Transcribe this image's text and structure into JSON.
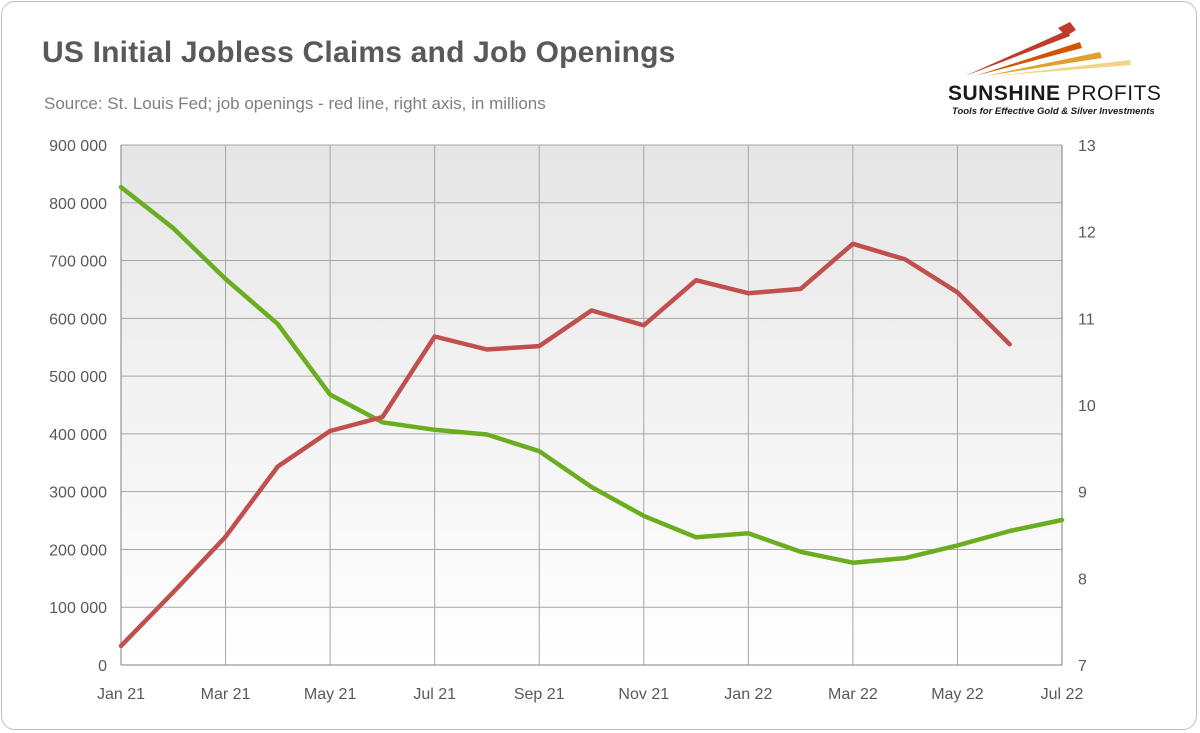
{
  "header": {
    "title": "US Initial Jobless Claims and Job Openings",
    "subtitle": "Source: St. Louis Fed; job openings - red line, right axis, in millions"
  },
  "logo": {
    "name_bold": "SUNSHINE",
    "name_regular": " PROFITS",
    "tagline": "Tools for Effective Gold & Silver Investments"
  },
  "chart_data": {
    "type": "line",
    "x_labels": [
      "Jan 21",
      "Feb 21",
      "Mar 21",
      "Apr 21",
      "May 21",
      "Jun 21",
      "Jul 21",
      "Aug 21",
      "Sep 21",
      "Oct 21",
      "Nov 21",
      "Dec 21",
      "Jan 22",
      "Feb 22",
      "Mar 22",
      "Apr 22",
      "May 22",
      "Jun 22",
      "Jul 22"
    ],
    "x_tick_labels": [
      "Jan 21",
      "Mar 21",
      "May 21",
      "Jul 21",
      "Sep 21",
      "Nov 21",
      "Jan 22",
      "Mar 22",
      "May 22",
      "Jul 22"
    ],
    "y_left": {
      "min": 0,
      "max": 900000,
      "ticks": [
        "0",
        "100 000",
        "200 000",
        "300 000",
        "400 000",
        "500 000",
        "600 000",
        "700 000",
        "800 000",
        "900 000"
      ]
    },
    "y_right": {
      "min": 7,
      "max": 13,
      "ticks": [
        "7",
        "8",
        "9",
        "10",
        "11",
        "12",
        "13"
      ]
    },
    "grid": true,
    "series": [
      {
        "axis": "left",
        "color": "#6aae1f",
        "values": [
          827000,
          756000,
          668000,
          590000,
          468000,
          420000,
          407000,
          399000,
          370000,
          308000,
          258000,
          221000,
          228000,
          196000,
          177000,
          185000,
          207000,
          232000,
          251000
        ]
      },
      {
        "axis": "right",
        "color": "#c0504d",
        "values": [
          7.22,
          7.84,
          8.48,
          9.29,
          9.7,
          9.86,
          10.79,
          10.64,
          10.68,
          11.09,
          10.92,
          11.44,
          11.29,
          11.34,
          11.86,
          11.68,
          11.3,
          10.7
        ]
      }
    ]
  }
}
